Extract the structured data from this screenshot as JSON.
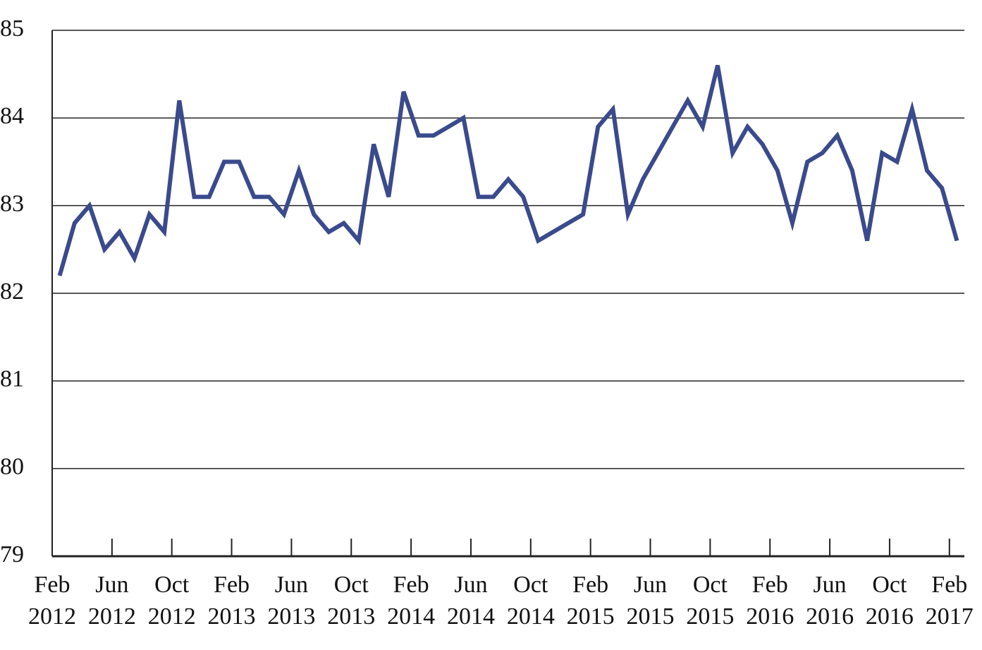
{
  "chart_data": {
    "type": "line",
    "categories": [
      "Feb 2012",
      null,
      null,
      null,
      "Jun 2012",
      null,
      null,
      null,
      "Oct 2012",
      null,
      null,
      null,
      "Feb 2013",
      null,
      null,
      null,
      "Jun 2013",
      null,
      null,
      null,
      "Oct 2013",
      null,
      null,
      null,
      "Feb 2014",
      null,
      null,
      null,
      "Jun 2014",
      null,
      null,
      null,
      "Oct 2014",
      null,
      null,
      null,
      "Feb 2015",
      null,
      null,
      null,
      "Jun 2015",
      null,
      null,
      null,
      "Oct 2015",
      null,
      null,
      null,
      "Feb 2016",
      null,
      null,
      null,
      "Jun 2016",
      null,
      null,
      null,
      "Oct 2016",
      null,
      null,
      null,
      "Feb 2017"
    ],
    "values": [
      82.2,
      82.8,
      83.0,
      82.5,
      82.7,
      82.4,
      82.9,
      82.7,
      84.2,
      83.1,
      83.1,
      83.5,
      83.5,
      83.1,
      83.1,
      82.9,
      83.4,
      82.9,
      82.7,
      82.8,
      82.6,
      83.7,
      83.1,
      84.3,
      83.8,
      83.8,
      83.9,
      84.0,
      83.1,
      83.1,
      83.3,
      83.1,
      82.6,
      82.7,
      82.8,
      82.9,
      83.9,
      84.1,
      82.9,
      83.3,
      83.6,
      83.9,
      84.2,
      83.9,
      84.6,
      83.6,
      83.9,
      83.7,
      83.4,
      82.8,
      83.5,
      83.6,
      83.8,
      83.4,
      82.6,
      83.6,
      83.5,
      84.1,
      83.4,
      83.2,
      82.6
    ],
    "color": "#3a4a8c",
    "ylim": [
      79,
      85
    ],
    "yticks": [
      79,
      80,
      81,
      82,
      83,
      84,
      85
    ],
    "grid": true
  }
}
